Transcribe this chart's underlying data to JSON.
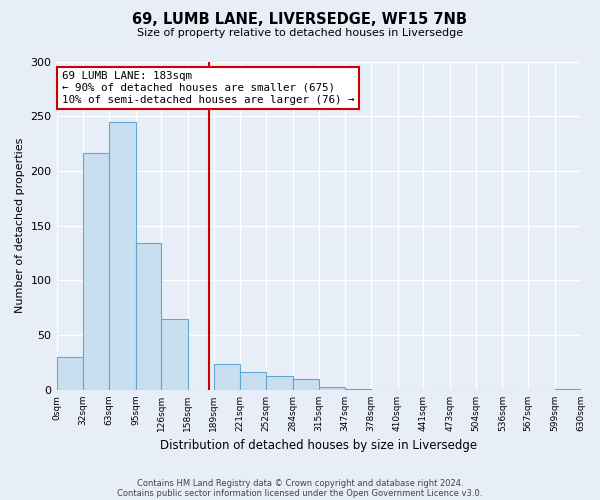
{
  "title": "69, LUMB LANE, LIVERSEDGE, WF15 7NB",
  "subtitle": "Size of property relative to detached houses in Liversedge",
  "xlabel": "Distribution of detached houses by size in Liversedge",
  "ylabel": "Number of detached properties",
  "bin_edges": [
    0,
    32,
    63,
    95,
    126,
    158,
    189,
    221,
    252,
    284,
    315,
    347,
    378,
    410,
    441,
    473,
    504,
    536,
    567,
    599,
    630
  ],
  "bin_labels": [
    "0sqm",
    "32sqm",
    "63sqm",
    "95sqm",
    "126sqm",
    "158sqm",
    "189sqm",
    "221sqm",
    "252sqm",
    "284sqm",
    "315sqm",
    "347sqm",
    "378sqm",
    "410sqm",
    "441sqm",
    "473sqm",
    "504sqm",
    "536sqm",
    "567sqm",
    "599sqm",
    "630sqm"
  ],
  "counts": [
    30,
    216,
    245,
    134,
    65,
    0,
    24,
    16,
    13,
    10,
    3,
    1,
    0,
    0,
    0,
    0,
    0,
    0,
    0,
    1
  ],
  "bar_color": "#c9dff0",
  "bar_edge_color": "#5fa8d3",
  "property_value": 183,
  "vline_color": "#cc0000",
  "annotation_line1": "69 LUMB LANE: 183sqm",
  "annotation_line2": "← 90% of detached houses are smaller (675)",
  "annotation_line3": "10% of semi-detached houses are larger (76) →",
  "annotation_box_edge": "#cc0000",
  "ylim": [
    0,
    300
  ],
  "yticks": [
    0,
    50,
    100,
    150,
    200,
    250,
    300
  ],
  "background_color": "#e8eef8",
  "plot_bg_color": "#e8eef8",
  "grid_color": "#ffffff",
  "footer_line1": "Contains HM Land Registry data © Crown copyright and database right 2024.",
  "footer_line2": "Contains public sector information licensed under the Open Government Licence v3.0."
}
